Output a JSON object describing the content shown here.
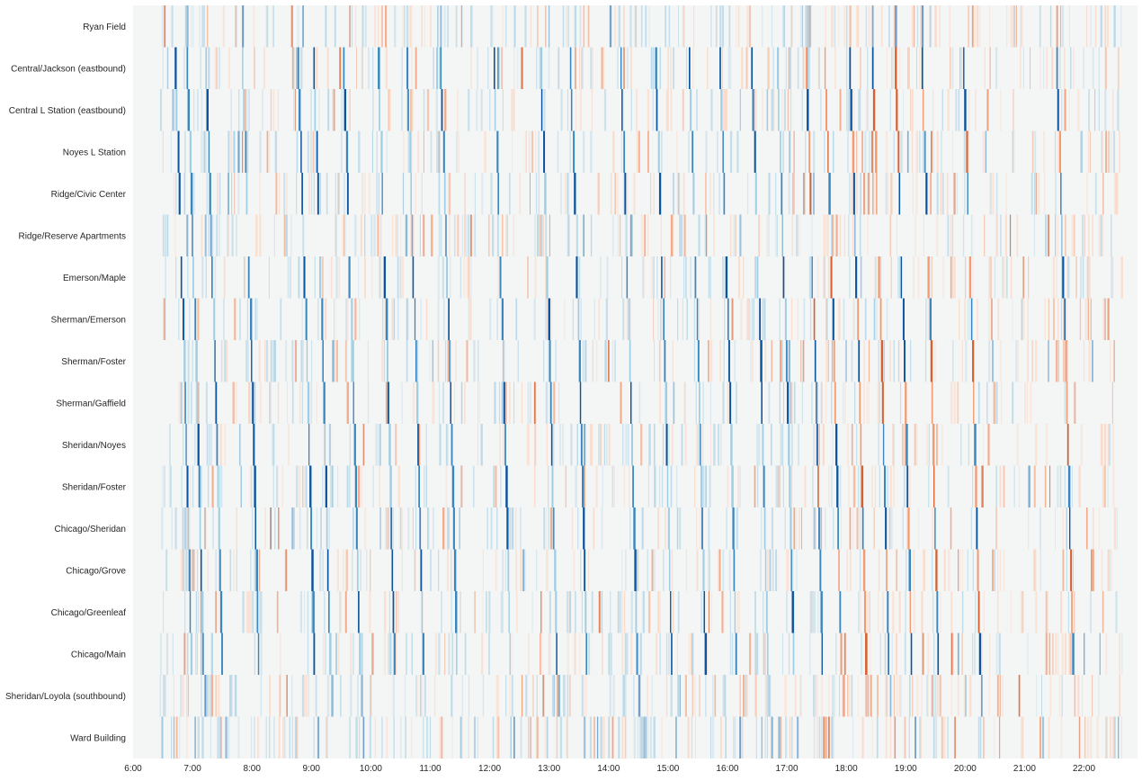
{
  "chart_data": {
    "type": "heatmap",
    "title": "",
    "xlabel": "",
    "ylabel": "",
    "x_tick_labels": [
      "6:00",
      "7:00",
      "8:00",
      "9:00",
      "10:00",
      "11:00",
      "12:00",
      "13:00",
      "14:00",
      "15:00",
      "16:00",
      "17:00",
      "18:00",
      "19:00",
      "20:00",
      "21:00",
      "22:00"
    ],
    "x_range_hours": [
      6,
      22.9
    ],
    "rows": [
      "Ryan Field",
      "Central/Jackson (eastbound)",
      "Central L Station (eastbound)",
      "Noyes L Station",
      "Ridge/Civic Center",
      "Ridge/Reserve Apartments",
      "Emerson/Maple",
      "Sherman/Emerson",
      "Sherman/Foster",
      "Sherman/Gaffield",
      "Sheridan/Noyes",
      "Sheridan/Foster",
      "Chicago/Sheridan",
      "Chicago/Grove",
      "Chicago/Greenleaf",
      "Chicago/Main",
      "Sheridan/Loyola (southbound)",
      "Ward Building"
    ],
    "trip_start_times": [
      "6:42",
      "6:54",
      "7:13",
      "7:50",
      "8:46",
      "9:02",
      "9:32",
      "10:07",
      "10:36",
      "11:10",
      "12:04",
      "12:51",
      "13:21",
      "14:12",
      "14:47",
      "15:21",
      "15:52",
      "16:24",
      "16:50",
      "17:19",
      "17:38",
      "18:03",
      "18:26",
      "18:49",
      "19:16",
      "19:58",
      "21:32"
    ],
    "row_offsets_minutes": [
      0,
      0,
      1,
      3,
      4,
      5,
      6,
      8,
      9,
      10,
      11,
      12,
      13,
      14,
      15,
      16,
      18,
      20
    ],
    "colors": {
      "background": "#f4f5f5",
      "strong_blue": "#0b55a0",
      "mid_blue": "#3a87c0",
      "light_blue": "#9fcde3",
      "strong_orange": "#d8602f",
      "mid_orange": "#f39a70",
      "light_orange": "#fcd6c2"
    }
  }
}
